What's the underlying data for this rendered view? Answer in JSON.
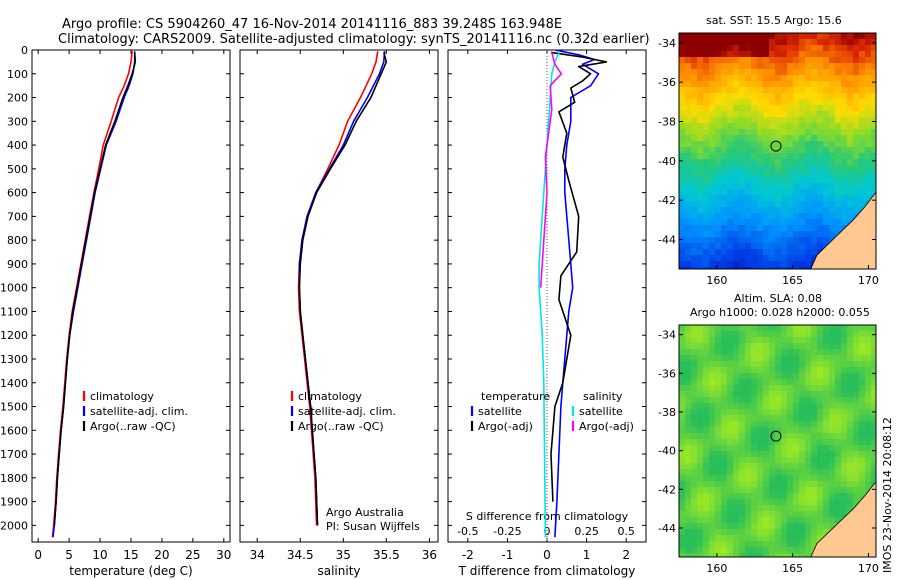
{
  "title_line1": "Argo profile: CS 5904260_47 16-Nov-2014 20141116_883 39.248S 163.948E",
  "title_line2": "Climatology: CARS2009. Satellite-adjusted climatology: synTS_20141116.nc (0.32d earlier)",
  "credit": {
    "line1": "Argo Australia",
    "line2": "PI: Susan Wijffels"
  },
  "side_stamp": "IMOS 23-Nov-2014 20:08:12",
  "map_sst": {
    "title": "sat. SST: 15.5 Argo: 15.6"
  },
  "map_sla": {
    "title1": "Altim. SLA: 0.08",
    "title2": "Argo h1000: 0.028 h2000: 0.055"
  },
  "chart_data": [
    {
      "type": "line",
      "xlabel": "temperature (deg C)",
      "ylabel": "",
      "xlim": [
        -1,
        31
      ],
      "ylim": [
        2070,
        0
      ],
      "xticks": [
        0,
        5,
        10,
        15,
        20,
        25,
        30
      ],
      "yticks": [
        0,
        100,
        200,
        300,
        400,
        500,
        600,
        700,
        800,
        900,
        1000,
        1100,
        1200,
        1300,
        1400,
        1500,
        1600,
        1700,
        1800,
        1900,
        2000
      ],
      "legend": {
        "position": "bottom-right",
        "entries": [
          "climatology",
          "satellite-adj. clim.",
          "Argo(..raw -QC)"
        ]
      },
      "series": [
        {
          "name": "climatology",
          "color": "#ff0000",
          "x": [
            15.2,
            15.0,
            14.6,
            13.9,
            13.0,
            11.8,
            10.5,
            9.8,
            9.0,
            8.3,
            7.6,
            6.9,
            6.2,
            5.5,
            5.0,
            4.6,
            4.3,
            4.0,
            3.6,
            3.3,
            3.0,
            2.8,
            2.5,
            2.3
          ],
          "y": [
            5,
            50,
            100,
            150,
            200,
            300,
            400,
            500,
            600,
            700,
            800,
            900,
            1000,
            1100,
            1200,
            1300,
            1400,
            1500,
            1600,
            1700,
            1800,
            1900,
            2000,
            2050
          ]
        },
        {
          "name": "satellite-adj. clim.",
          "color": "#0000ff",
          "x": [
            15.6,
            15.6,
            15.3,
            14.7,
            13.9,
            12.6,
            11.0,
            10.1,
            9.2,
            8.5,
            7.8,
            7.1,
            6.4,
            5.7,
            5.1,
            4.7,
            4.4,
            4.1,
            3.7,
            3.4,
            3.1,
            2.9,
            2.6,
            2.4
          ],
          "y": [
            5,
            50,
            100,
            150,
            200,
            300,
            400,
            500,
            600,
            700,
            800,
            900,
            1000,
            1100,
            1200,
            1300,
            1400,
            1500,
            1600,
            1700,
            1800,
            1900,
            2000,
            2050
          ]
        },
        {
          "name": "Argo(..raw -QC)",
          "color": "#000000",
          "x": [
            15.6,
            15.7,
            15.2,
            14.5,
            13.7,
            12.4,
            10.9,
            10.0,
            9.1,
            8.4,
            7.7,
            7.0,
            6.3,
            5.6,
            5.1,
            4.7,
            4.4,
            4.1,
            3.7,
            3.4,
            3.1,
            2.9,
            2.6
          ],
          "y": [
            10,
            50,
            100,
            150,
            200,
            300,
            400,
            500,
            600,
            700,
            800,
            900,
            1000,
            1100,
            1200,
            1300,
            1400,
            1500,
            1600,
            1700,
            1800,
            1900,
            2000
          ]
        }
      ]
    },
    {
      "type": "line",
      "xlabel": "salinity",
      "ylabel": "",
      "xlim": [
        33.8,
        36.1
      ],
      "ylim": [
        2070,
        0
      ],
      "xticks": [
        34,
        34.5,
        35,
        35.5,
        36
      ],
      "xticklabels": [
        "34",
        "34.5",
        "35",
        "35.5",
        "36"
      ],
      "legend": {
        "position": "bottom-right",
        "entries": [
          "climatology",
          "satellite-adj. clim.",
          "Argo(..raw -QC)"
        ]
      },
      "series": [
        {
          "name": "climatology",
          "color": "#ff0000",
          "x": [
            35.4,
            35.38,
            35.33,
            35.2,
            35.05,
            34.95,
            34.82,
            34.68,
            34.58,
            34.52,
            34.49,
            34.48,
            34.49,
            34.52,
            34.55,
            34.58,
            34.61,
            34.63,
            34.65,
            34.67,
            34.69
          ],
          "y": [
            5,
            50,
            100,
            200,
            300,
            400,
            500,
            600,
            700,
            800,
            900,
            1000,
            1100,
            1200,
            1300,
            1400,
            1500,
            1600,
            1700,
            1800,
            2000
          ]
        },
        {
          "name": "satellite-adj. clim.",
          "color": "#0000ff",
          "x": [
            35.48,
            35.47,
            35.42,
            35.28,
            35.12,
            35.0,
            34.84,
            34.68,
            34.58,
            34.52,
            34.49,
            34.49,
            34.5,
            34.53,
            34.56,
            34.59,
            34.62,
            34.64,
            34.66,
            34.68,
            34.7
          ],
          "y": [
            5,
            50,
            100,
            200,
            300,
            400,
            500,
            600,
            700,
            800,
            900,
            1000,
            1100,
            1200,
            1300,
            1400,
            1500,
            1600,
            1700,
            1800,
            2000
          ]
        },
        {
          "name": "Argo(..raw -QC)",
          "color": "#000000",
          "x": [
            35.47,
            35.5,
            35.44,
            35.32,
            35.15,
            35.02,
            34.85,
            34.69,
            34.59,
            34.53,
            34.5,
            34.49,
            34.5,
            34.53,
            34.56,
            34.59,
            34.62,
            34.64,
            34.66,
            34.68,
            34.7
          ],
          "y": [
            10,
            50,
            100,
            200,
            300,
            400,
            500,
            600,
            700,
            800,
            900,
            1000,
            1100,
            1200,
            1300,
            1400,
            1500,
            1600,
            1700,
            1800,
            2000
          ]
        }
      ]
    },
    {
      "type": "line",
      "xlabel": "T difference from climatology",
      "xlabel_top": "S difference from climatology",
      "ylabel": "",
      "xlim": [
        -2.5,
        2.5
      ],
      "ylim": [
        2070,
        0
      ],
      "xticks": [
        -2,
        -1,
        0,
        1,
        2
      ],
      "xticks_top": [
        -0.5,
        -0.25,
        0,
        0.25,
        0.5
      ],
      "xticklabels_top": [
        "-0.5",
        "-0.25",
        "0",
        "0.25",
        "0.5"
      ],
      "legend": {
        "position": "bottom",
        "groups": [
          "temperature",
          "salinity"
        ],
        "entries": [
          "satellite",
          "Argo(-adj)",
          "satellite",
          "Argo(-adj)"
        ]
      },
      "series": [
        {
          "name": "satellite",
          "group": "temperature",
          "color": "#0000ff",
          "x": [
            0.2,
            0.8,
            1.2,
            0.9,
            1.3,
            1.1,
            0.6,
            0.6,
            0.5,
            0.45,
            0.45,
            0.5,
            0.55,
            0.6,
            0.65,
            0.55,
            0.5,
            0.45,
            0.4,
            0.35,
            0.3,
            0.25,
            0.2
          ],
          "y": [
            0,
            20,
            40,
            60,
            100,
            150,
            200,
            300,
            400,
            500,
            600,
            700,
            800,
            900,
            1000,
            1100,
            1200,
            1300,
            1400,
            1500,
            1700,
            1900,
            2050
          ]
        },
        {
          "name": "Argo(-adj)",
          "group": "temperature",
          "color": "#000000",
          "x": [
            0.1,
            0.9,
            1.5,
            0.8,
            1.1,
            0.9,
            0.6,
            0.7,
            0.3,
            0.5,
            0.4,
            0.55,
            0.8,
            0.75,
            0.35,
            0.3,
            0.6,
            0.5,
            0.4,
            0.2,
            0.1,
            0.15
          ],
          "y": [
            10,
            30,
            50,
            70,
            100,
            130,
            160,
            220,
            260,
            350,
            450,
            550,
            700,
            850,
            950,
            1050,
            1200,
            1300,
            1400,
            1500,
            1700,
            1900
          ]
        },
        {
          "name": "satellite",
          "group": "salinity",
          "color": "#00e5e5",
          "x": [
            0.08,
            0.05,
            0.03,
            0.02,
            0.01,
            0.0,
            -0.01,
            -0.02,
            -0.03,
            -0.04,
            -0.05,
            -0.05,
            -0.04,
            -0.03,
            -0.02,
            -0.01
          ],
          "y": [
            5,
            50,
            100,
            200,
            300,
            400,
            500,
            600,
            700,
            800,
            900,
            1000,
            1100,
            1200,
            1400,
            2050
          ]
        },
        {
          "name": "Argo(-adj)",
          "group": "salinity",
          "color": "#ff00ff",
          "x": [
            0.03,
            0.05,
            0.09,
            0.02,
            0.03,
            -0.01,
            0.0,
            -0.02,
            -0.04
          ],
          "y": [
            10,
            60,
            100,
            150,
            250,
            450,
            600,
            800,
            1000
          ]
        }
      ]
    },
    {
      "type": "heatmap",
      "name": "sat-sst-map",
      "xlim": [
        157.5,
        170.5
      ],
      "ylim": [
        -45.5,
        -33.5
      ],
      "xticks": [
        160,
        165,
        170
      ],
      "yticks": [
        -34,
        -36,
        -38,
        -40,
        -42,
        -44
      ],
      "argo_marker": {
        "lon": 163.9,
        "lat": -39.25
      },
      "colors": {
        "land": "#ffc890"
      }
    },
    {
      "type": "heatmap",
      "name": "sla-map",
      "xlim": [
        157.5,
        170.5
      ],
      "ylim": [
        -45.5,
        -33.5
      ],
      "xticks": [
        160,
        165,
        170
      ],
      "yticks": [
        -34,
        -36,
        -38,
        -40,
        -42,
        -44
      ],
      "argo_marker": {
        "lon": 163.9,
        "lat": -39.25
      },
      "colors": {
        "land": "#ffc890"
      }
    }
  ]
}
